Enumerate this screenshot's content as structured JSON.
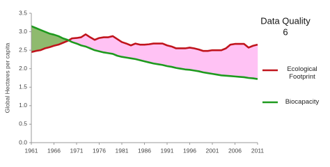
{
  "chart_data": {
    "type": "line",
    "title": "Data Quality",
    "subtitle": "6",
    "y_label": "Global Hectares per capita",
    "x": [
      1961,
      1962,
      1963,
      1964,
      1965,
      1966,
      1967,
      1968,
      1969,
      1970,
      1971,
      1972,
      1973,
      1974,
      1975,
      1976,
      1977,
      1978,
      1979,
      1980,
      1981,
      1982,
      1983,
      1984,
      1985,
      1986,
      1987,
      1988,
      1989,
      1990,
      1991,
      1992,
      1993,
      1994,
      1995,
      1996,
      1997,
      1998,
      1999,
      2000,
      2001,
      2002,
      2003,
      2004,
      2005,
      2006,
      2007,
      2008,
      2009,
      2010,
      2011
    ],
    "series": [
      {
        "name": "Ecological Footprint",
        "color": "#c0141c",
        "values": [
          2.45,
          2.48,
          2.5,
          2.55,
          2.58,
          2.62,
          2.65,
          2.7,
          2.75,
          2.82,
          2.83,
          2.85,
          2.93,
          2.85,
          2.78,
          2.83,
          2.85,
          2.85,
          2.88,
          2.8,
          2.72,
          2.68,
          2.63,
          2.68,
          2.65,
          2.65,
          2.66,
          2.68,
          2.68,
          2.68,
          2.63,
          2.6,
          2.55,
          2.55,
          2.55,
          2.57,
          2.55,
          2.52,
          2.48,
          2.48,
          2.5,
          2.5,
          2.5,
          2.55,
          2.65,
          2.67,
          2.67,
          2.67,
          2.57,
          2.62,
          2.65
        ]
      },
      {
        "name": "Biocapacity",
        "color": "#1e9a1e",
        "values": [
          3.15,
          3.1,
          3.05,
          3.0,
          2.95,
          2.92,
          2.88,
          2.82,
          2.78,
          2.72,
          2.68,
          2.63,
          2.6,
          2.55,
          2.5,
          2.47,
          2.44,
          2.42,
          2.4,
          2.35,
          2.32,
          2.3,
          2.28,
          2.26,
          2.23,
          2.2,
          2.17,
          2.14,
          2.12,
          2.1,
          2.07,
          2.05,
          2.02,
          2.0,
          1.98,
          1.97,
          1.95,
          1.93,
          1.9,
          1.88,
          1.86,
          1.84,
          1.82,
          1.81,
          1.8,
          1.79,
          1.78,
          1.77,
          1.75,
          1.74,
          1.72
        ]
      }
    ],
    "fill_deficit_color": "#ffc2f4",
    "fill_reserve_color": "#8fba6e",
    "xlim": [
      1961,
      2011
    ],
    "xticks": [
      1961,
      1966,
      1971,
      1976,
      1981,
      1986,
      1991,
      1996,
      2001,
      2006,
      2011
    ],
    "ylim": [
      0,
      3.5
    ],
    "yticks": [
      {
        "value": 0,
        "label": "0.0"
      },
      0.5,
      {
        "value": 1,
        "label": "1.0"
      },
      1.5,
      {
        "value": 2,
        "label": "2.0"
      },
      2.5,
      {
        "value": 3,
        "label": "3.0"
      },
      3.5
    ],
    "grid": false,
    "legend": "right"
  }
}
